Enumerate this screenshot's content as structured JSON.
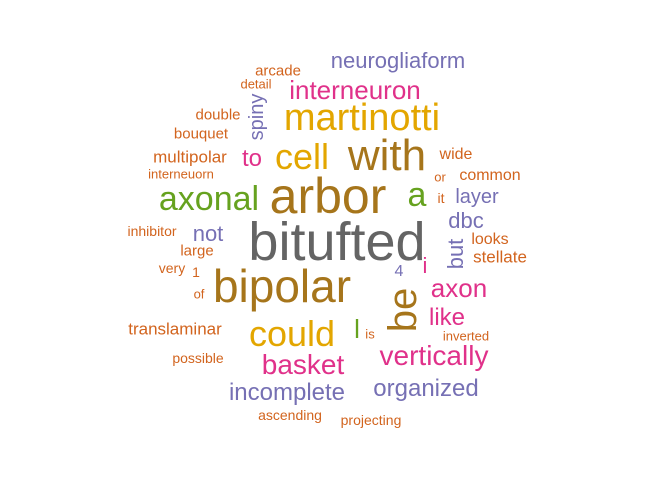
{
  "colors": {
    "orange": "#d2641e",
    "purple": "#7670b4",
    "magenta": "#e0318a",
    "green": "#66a21f",
    "gold": "#e3a600",
    "brown": "#a6751b",
    "gray": "#646464"
  },
  "words": [
    {
      "text": "bitufted",
      "color": "gray",
      "weight": 10
    },
    {
      "text": "arbor",
      "color": "brown",
      "weight": 8
    },
    {
      "text": "bipolar",
      "color": "brown",
      "weight": 8
    },
    {
      "text": "with",
      "color": "brown",
      "weight": 7
    },
    {
      "text": "be",
      "color": "brown",
      "weight": 6
    },
    {
      "text": "martinotti",
      "color": "gold",
      "weight": 6
    },
    {
      "text": "cell",
      "color": "gold",
      "weight": 6
    },
    {
      "text": "could",
      "color": "gold",
      "weight": 6
    },
    {
      "text": "axonal",
      "color": "green",
      "weight": 5
    },
    {
      "text": "a",
      "color": "green",
      "weight": 5
    },
    {
      "text": "basket",
      "color": "magenta",
      "weight": 5
    },
    {
      "text": "vertically",
      "color": "magenta",
      "weight": 5
    },
    {
      "text": "interneuron",
      "color": "magenta",
      "weight": 4
    },
    {
      "text": "axon",
      "color": "magenta",
      "weight": 4
    },
    {
      "text": "like",
      "color": "magenta",
      "weight": 3
    },
    {
      "text": "to",
      "color": "magenta",
      "weight": 3
    },
    {
      "text": "i",
      "color": "magenta",
      "weight": 3
    },
    {
      "text": "l",
      "color": "green",
      "weight": 3
    },
    {
      "text": "neurogliaform",
      "color": "purple",
      "weight": 3
    },
    {
      "text": "incomplete",
      "color": "purple",
      "weight": 3
    },
    {
      "text": "organized",
      "color": "purple",
      "weight": 3
    },
    {
      "text": "layer",
      "color": "purple",
      "weight": 3
    },
    {
      "text": "dbc",
      "color": "purple",
      "weight": 3
    },
    {
      "text": "not",
      "color": "purple",
      "weight": 3
    },
    {
      "text": "but",
      "color": "purple",
      "weight": 3
    },
    {
      "text": "spiny",
      "color": "purple",
      "weight": 3
    },
    {
      "text": "4",
      "color": "purple",
      "weight": 2
    },
    {
      "text": "multipolar",
      "color": "orange",
      "weight": 2
    },
    {
      "text": "translaminar",
      "color": "orange",
      "weight": 2
    },
    {
      "text": "stellate",
      "color": "orange",
      "weight": 2
    },
    {
      "text": "looks",
      "color": "orange",
      "weight": 2
    },
    {
      "text": "common",
      "color": "orange",
      "weight": 2
    },
    {
      "text": "wide",
      "color": "orange",
      "weight": 2
    },
    {
      "text": "double",
      "color": "orange",
      "weight": 2
    },
    {
      "text": "bouquet",
      "color": "orange",
      "weight": 2
    },
    {
      "text": "arcade",
      "color": "orange",
      "weight": 2
    },
    {
      "text": "detail",
      "color": "orange",
      "weight": 1
    },
    {
      "text": "interneuorn",
      "color": "orange",
      "weight": 1
    },
    {
      "text": "inhibitor",
      "color": "orange",
      "weight": 1
    },
    {
      "text": "large",
      "color": "orange",
      "weight": 2
    },
    {
      "text": "very",
      "color": "orange",
      "weight": 1
    },
    {
      "text": "1",
      "color": "orange",
      "weight": 1
    },
    {
      "text": "of",
      "color": "orange",
      "weight": 1
    },
    {
      "text": "it",
      "color": "orange",
      "weight": 1
    },
    {
      "text": "or",
      "color": "orange",
      "weight": 1
    },
    {
      "text": "is",
      "color": "orange",
      "weight": 1
    },
    {
      "text": "inverted",
      "color": "orange",
      "weight": 1
    },
    {
      "text": "possible",
      "color": "orange",
      "weight": 1
    },
    {
      "text": "ascending",
      "color": "orange",
      "weight": 1
    },
    {
      "text": "projecting",
      "color": "orange",
      "weight": 1
    }
  ]
}
